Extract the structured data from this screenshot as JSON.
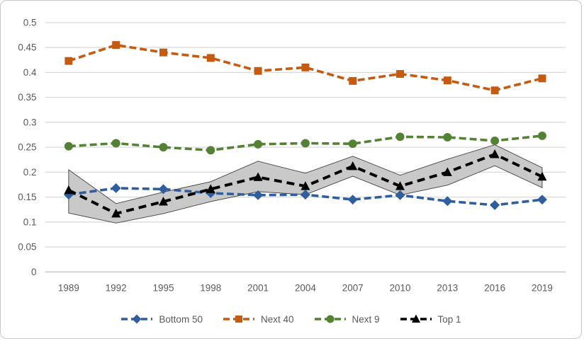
{
  "chart_data": {
    "type": "line",
    "title": "",
    "xlabel": "",
    "ylabel": "",
    "x_categories": [
      "1989",
      "1992",
      "1995",
      "1998",
      "2001",
      "2004",
      "2007",
      "2010",
      "2013",
      "2016",
      "2019"
    ],
    "ylim": [
      0,
      0.5
    ],
    "ytick_step": 0.05,
    "ytick_labels": [
      "0",
      "0.05",
      "0.1",
      "0.15",
      "0.2",
      "0.25",
      "0.3",
      "0.35",
      "0.4",
      "0.45",
      "0.5"
    ],
    "grid": "horizontal",
    "legend_position": "bottom",
    "series": [
      {
        "name": "Bottom 50",
        "color": "#2F5D9E",
        "marker": "diamond",
        "line_style": "dashed",
        "values": [
          0.155,
          0.168,
          0.166,
          0.158,
          0.154,
          0.155,
          0.145,
          0.154,
          0.142,
          0.134,
          0.145
        ]
      },
      {
        "name": "Next 40",
        "color": "#C55A11",
        "marker": "square",
        "line_style": "dashed",
        "values": [
          0.423,
          0.455,
          0.44,
          0.429,
          0.403,
          0.41,
          0.383,
          0.397,
          0.384,
          0.364,
          0.388
        ]
      },
      {
        "name": "Next 9",
        "color": "#548235",
        "marker": "circle",
        "line_style": "dashed",
        "values": [
          0.252,
          0.258,
          0.25,
          0.244,
          0.256,
          0.258,
          0.257,
          0.271,
          0.27,
          0.263,
          0.273
        ]
      },
      {
        "name": "Top 1",
        "color": "#000000",
        "marker": "triangle",
        "line_style": "dashed",
        "values": [
          0.164,
          0.117,
          0.141,
          0.166,
          0.19,
          0.172,
          0.212,
          0.172,
          0.2,
          0.236,
          0.191
        ],
        "band": {
          "upper": [
            0.205,
            0.137,
            0.16,
            0.181,
            0.222,
            0.198,
            0.232,
            0.194,
            0.226,
            0.255,
            0.209
          ],
          "lower": [
            0.118,
            0.098,
            0.117,
            0.141,
            0.161,
            0.155,
            0.192,
            0.154,
            0.174,
            0.213,
            0.169
          ],
          "fill": "#C9C9C9",
          "edge": "#404040"
        }
      }
    ],
    "style": {
      "grid_color": "#D9D9D9",
      "axis_line_color": "#BFBFBF",
      "label_color": "#595959",
      "background": "#FFFFFF",
      "border_color": "#C9C9C9"
    }
  }
}
